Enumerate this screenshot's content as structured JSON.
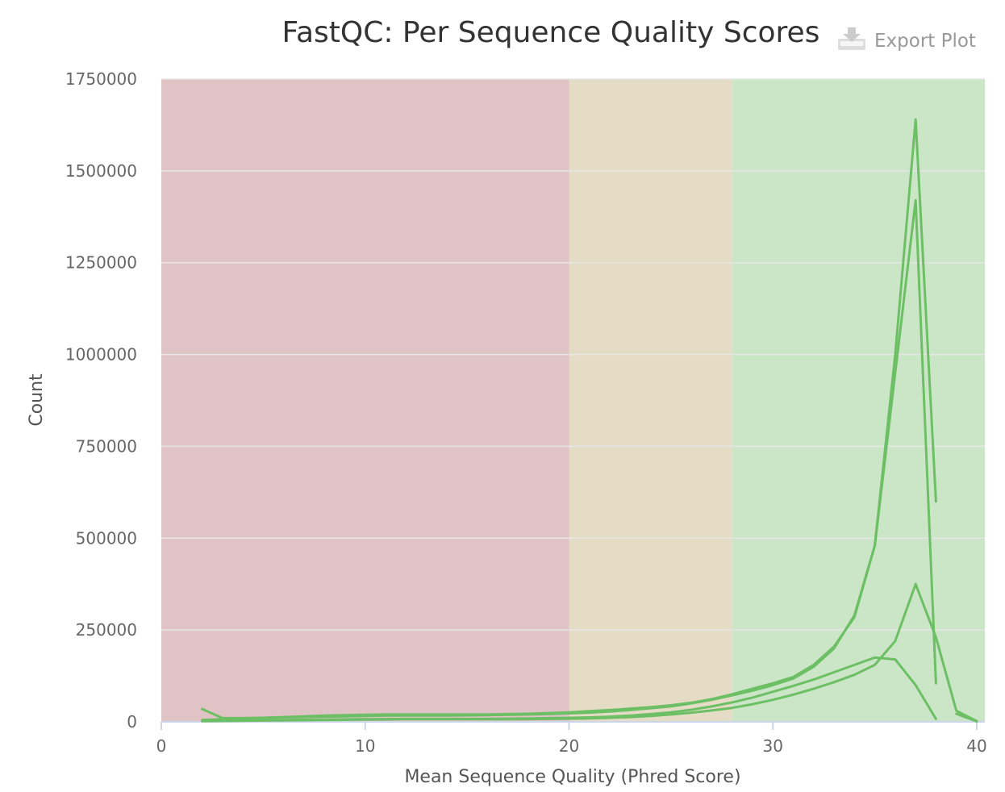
{
  "export_button": {
    "label": "Export Plot",
    "icon": "download-icon"
  },
  "colors": {
    "fail_band": "#e0c3c5",
    "warn_band": "#e5dcc6",
    "pass_band": "#cbe6c7",
    "line": "#6dbf65",
    "grid": "#e6e6e6",
    "axis": "#ccd6eb"
  },
  "chart_data": {
    "type": "line",
    "title": "FastQC: Per Sequence Quality Scores",
    "xlabel": "Mean Sequence Quality (Phred Score)",
    "ylabel": "Count",
    "xlim": [
      0,
      40
    ],
    "ylim": [
      0,
      1750000
    ],
    "x_ticks": [
      "0",
      "10",
      "20",
      "30",
      "40"
    ],
    "y_ticks": [
      "0",
      "250000",
      "500000",
      "750000",
      "1000000",
      "1250000",
      "1500000",
      "1750000"
    ],
    "grid": true,
    "bands": [
      {
        "from": 0,
        "to": 20,
        "status": "fail"
      },
      {
        "from": 20,
        "to": 28,
        "status": "warn"
      },
      {
        "from": 28,
        "to": 40.4,
        "status": "pass"
      }
    ],
    "series": [
      {
        "x": [
          2,
          3,
          4,
          5,
          6,
          7,
          8,
          9,
          10,
          11,
          12,
          13,
          14,
          15,
          16,
          17,
          18,
          19,
          20,
          21,
          22,
          23,
          24,
          25,
          26,
          27,
          28,
          29,
          30,
          31,
          32,
          33,
          34,
          35,
          36,
          37,
          38
        ],
        "values": [
          35000,
          10000,
          10000,
          11000,
          12000,
          13000,
          14000,
          15000,
          16000,
          17000,
          17000,
          17000,
          17000,
          17500,
          18000,
          19000,
          20000,
          21000,
          23000,
          25000,
          28000,
          32000,
          37000,
          42000,
          50000,
          60000,
          72000,
          85000,
          100000,
          118000,
          150000,
          200000,
          290000,
          480000,
          1000000,
          1640000,
          600000
        ]
      },
      {
        "x": [
          2,
          3,
          4,
          5,
          6,
          7,
          8,
          9,
          10,
          11,
          12,
          13,
          14,
          15,
          16,
          17,
          18,
          19,
          20,
          21,
          22,
          23,
          24,
          25,
          26,
          27,
          28,
          29,
          30,
          31,
          32,
          33,
          34,
          35,
          36,
          37,
          38
        ],
        "values": [
          5000,
          7000,
          9000,
          11000,
          13000,
          15000,
          17000,
          18000,
          19000,
          20000,
          20000,
          20000,
          20000,
          20000,
          20000,
          21000,
          22000,
          24000,
          26000,
          29000,
          32000,
          36000,
          40000,
          45000,
          52000,
          62000,
          75000,
          90000,
          105000,
          122000,
          155000,
          205000,
          285000,
          480000,
          950000,
          1420000,
          105000
        ]
      },
      {
        "x": [
          2,
          3,
          4,
          5,
          6,
          7,
          8,
          9,
          10,
          11,
          12,
          13,
          14,
          15,
          16,
          17,
          18,
          19,
          20,
          21,
          22,
          23,
          24,
          25,
          26,
          27,
          28,
          29,
          30,
          31,
          32,
          33,
          34,
          35,
          36,
          37,
          38
        ],
        "values": [
          3000,
          3500,
          4000,
          4500,
          5000,
          5500,
          6000,
          6500,
          7000,
          7500,
          8000,
          8000,
          8000,
          8000,
          8000,
          8500,
          9000,
          10000,
          11000,
          12000,
          14000,
          17000,
          21000,
          26000,
          33000,
          42000,
          53000,
          66000,
          82000,
          98000,
          115000,
          135000,
          155000,
          175000,
          170000,
          100000,
          8000
        ]
      },
      {
        "x": [
          2,
          3,
          4,
          5,
          6,
          7,
          8,
          9,
          10,
          11,
          12,
          13,
          14,
          15,
          16,
          17,
          18,
          19,
          20,
          21,
          22,
          23,
          24,
          25,
          26,
          27,
          28,
          29,
          30,
          31,
          32,
          33,
          34,
          35,
          36,
          37,
          38,
          39,
          40
        ],
        "values": [
          2000,
          2500,
          3000,
          3500,
          4000,
          4500,
          5000,
          5500,
          6000,
          6500,
          7000,
          7000,
          7000,
          7000,
          7000,
          7200,
          7500,
          8000,
          8500,
          9500,
          11000,
          13000,
          16000,
          20000,
          25000,
          31000,
          38000,
          48000,
          60000,
          74000,
          90000,
          108000,
          128000,
          155000,
          220000,
          375000,
          230000,
          30000,
          2000
        ]
      },
      {
        "x": [
          39,
          40
        ],
        "values": [
          22000,
          1000
        ]
      }
    ]
  }
}
